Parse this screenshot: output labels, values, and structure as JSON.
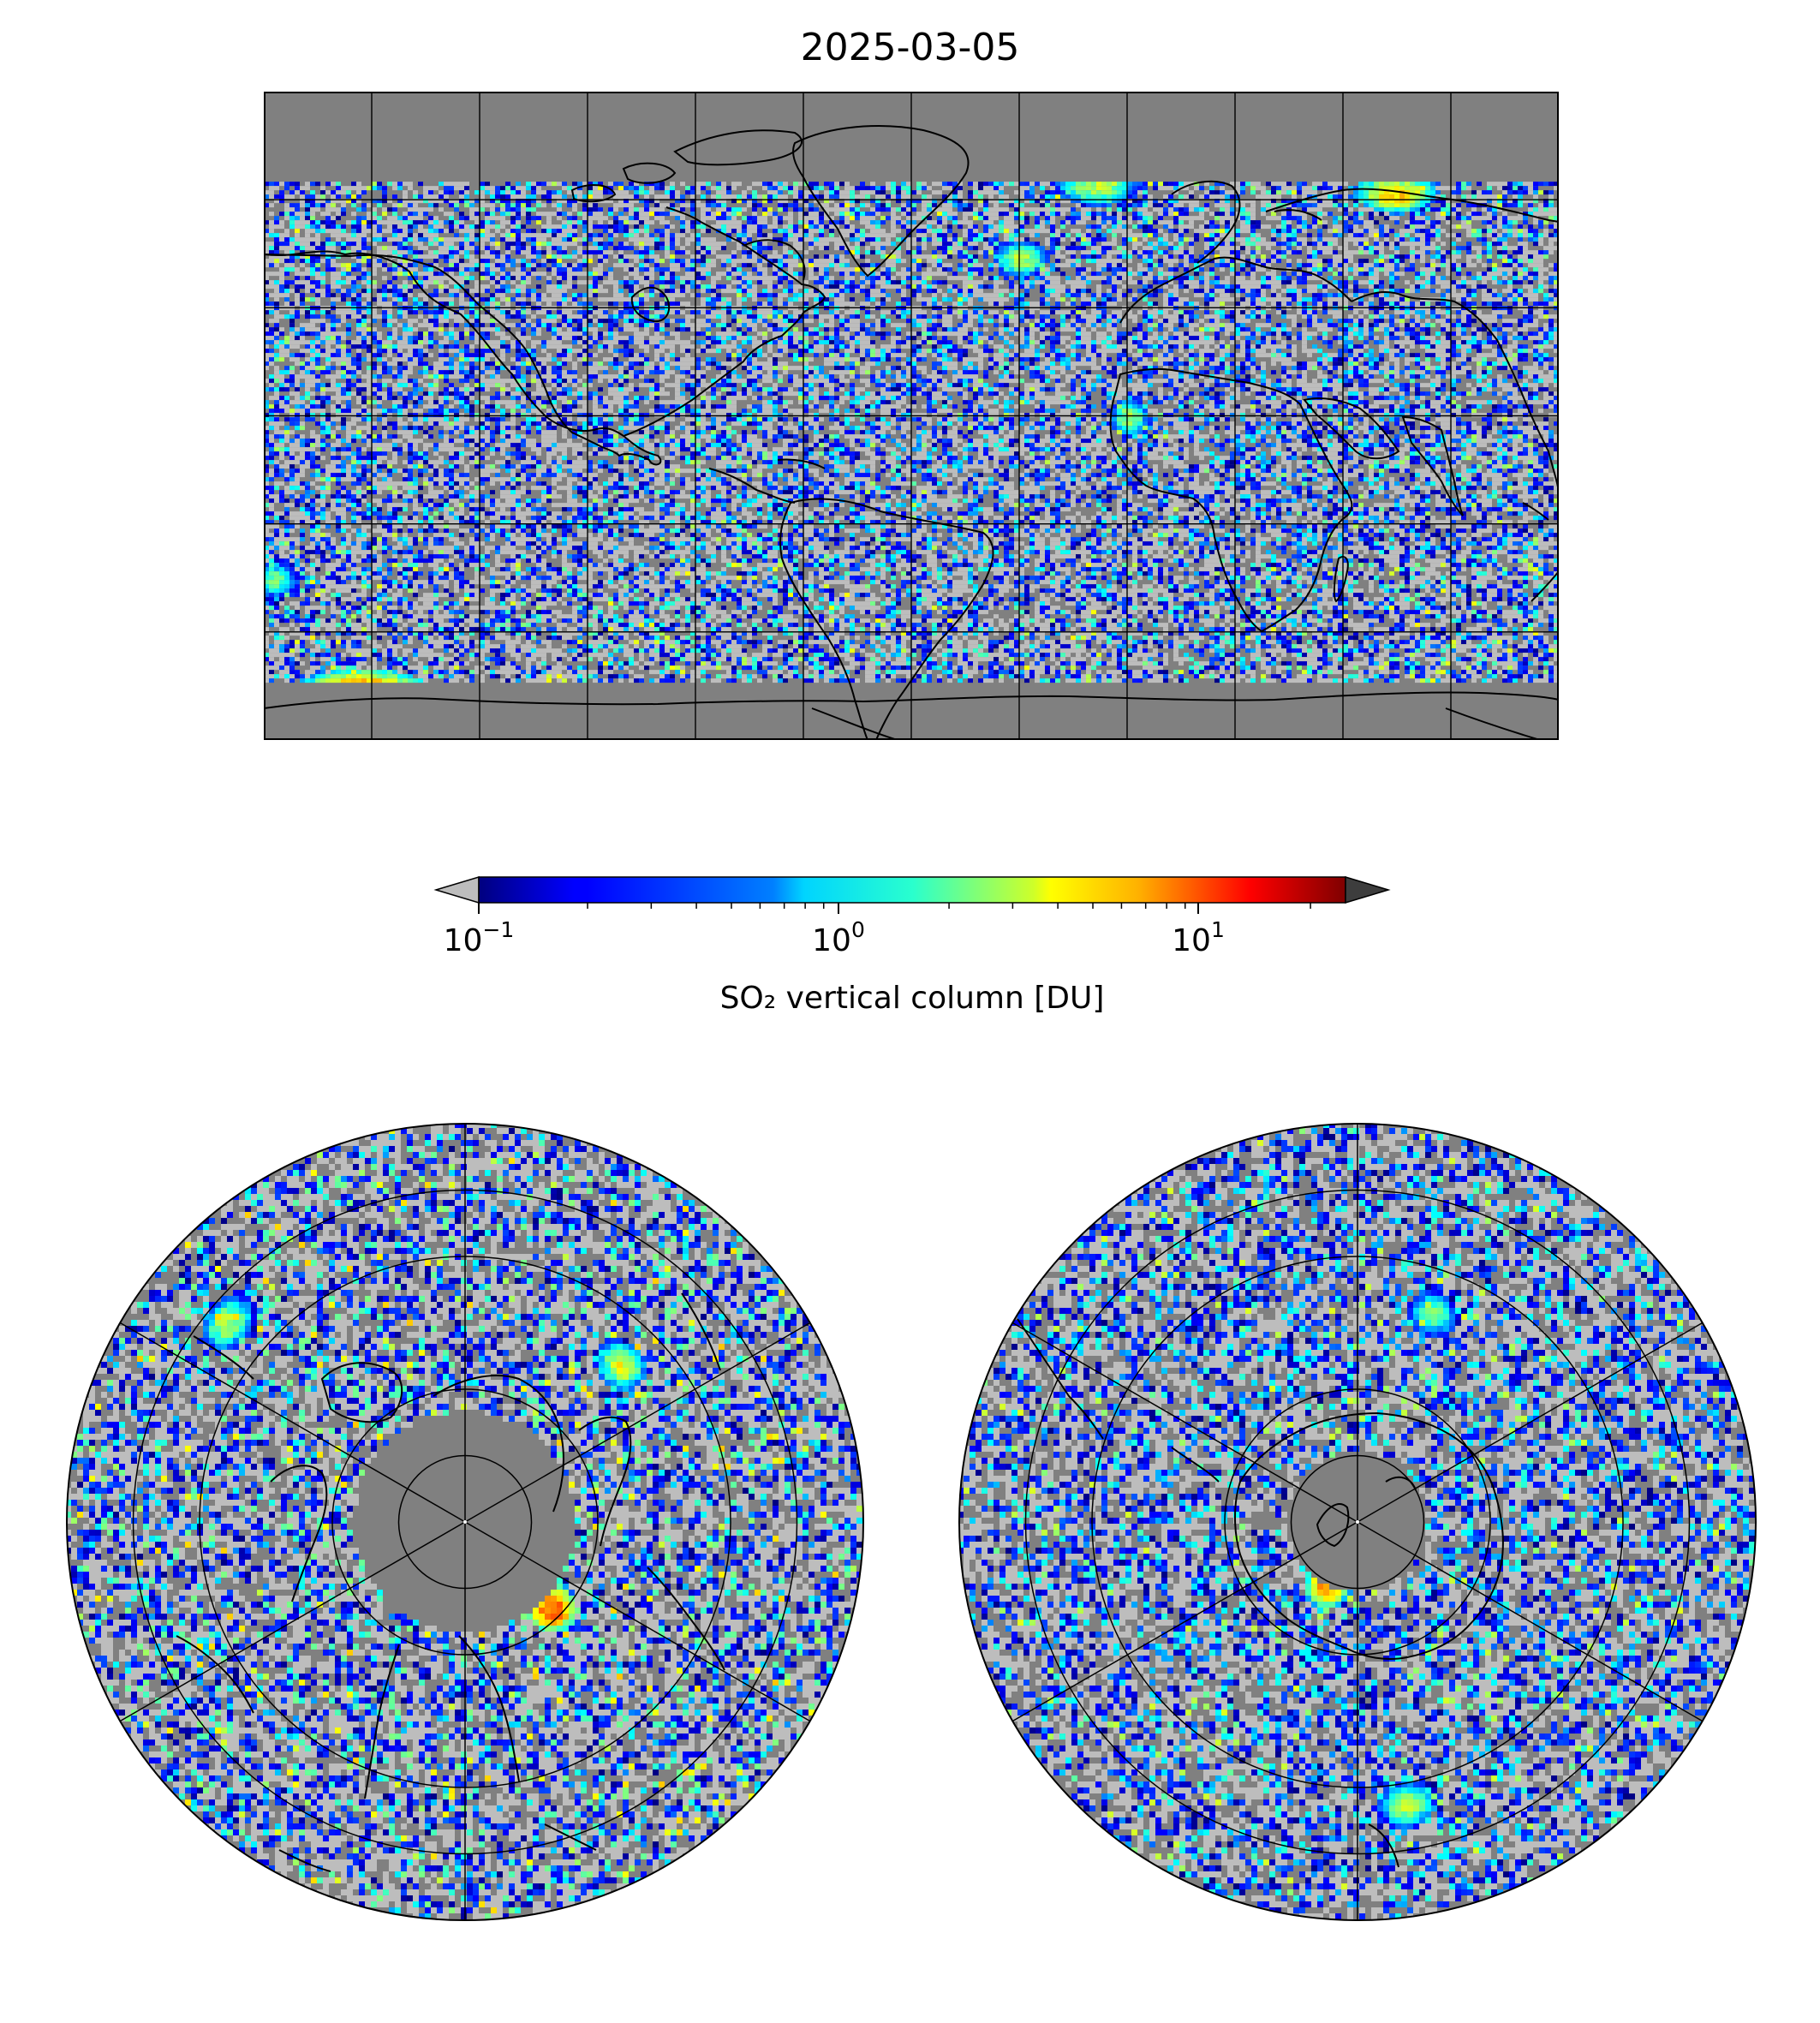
{
  "figure": {
    "title": "2025-03-05"
  },
  "colorbar": {
    "label": "SO₂ vertical column [DU]",
    "scale": "log",
    "range": [
      0.1,
      25
    ],
    "extend": "both",
    "colormap": "jet",
    "under_color": "#bdbdbd",
    "over_color": "#3d3d3d",
    "ticks": [
      {
        "value": 0.1,
        "base": "10",
        "exp": "−1"
      },
      {
        "value": 1,
        "base": "10",
        "exp": "0"
      },
      {
        "value": 10,
        "base": "10",
        "exp": "1"
      }
    ]
  },
  "maps": {
    "background_color": "#808080",
    "below_range_color": "#bdbdbd",
    "coastline_color": "#000000",
    "gridline_color": "#000000"
  },
  "chart_data": [
    {
      "type": "heatmap",
      "name_hidden": "global",
      "projection": "plate-carree",
      "lon_range": [
        -180,
        180
      ],
      "lat_range": [
        -90,
        90
      ],
      "gridlines_lon": [
        -150,
        -120,
        -90,
        -60,
        -30,
        0,
        30,
        60,
        90,
        120,
        150
      ],
      "gridlines_lat": [
        -60,
        -30,
        0,
        30,
        60
      ],
      "grid": true,
      "valid_lat_range": [
        -74,
        65
      ],
      "hotspots": [
        {
          "lon": -153,
          "lat": -75,
          "value": 8
        },
        {
          "lon": 30,
          "lat": 44,
          "value": 3
        },
        {
          "lon": 134,
          "lat": 62,
          "value": 6
        },
        {
          "lon": 51,
          "lat": 64,
          "value": 3
        },
        {
          "lon": 60,
          "lat": 0,
          "value": 3
        },
        {
          "lon": -178,
          "lat": -45,
          "value": 2
        }
      ]
    },
    {
      "type": "heatmap",
      "name_hidden": "north-polar",
      "projection": "north-polar-stereographic",
      "lat_range": [
        0,
        90
      ],
      "grid_circles_lat": [
        15,
        30,
        60,
        75
      ],
      "grid_spokes_lon": [
        0,
        60,
        120,
        180,
        240,
        300
      ],
      "valid_lat_range": [
        0,
        65
      ],
      "hotspots": [
        {
          "lon": 135,
          "lat": 62,
          "value": 12
        },
        {
          "lon": 45,
          "lat": 40,
          "value": 4
        },
        {
          "lon": -50,
          "lat": 20,
          "value": 3
        }
      ]
    },
    {
      "type": "heatmap",
      "name_hidden": "south-polar",
      "projection": "south-polar-stereographic",
      "lat_range": [
        -90,
        0
      ],
      "grid_circles_lat": [
        -15,
        -30,
        -60,
        -75
      ],
      "grid_spokes_lon": [
        0,
        60,
        120,
        180,
        240,
        300
      ],
      "valid_lat_range": [
        -74,
        0
      ],
      "hotspots": [
        {
          "lon": -155,
          "lat": -74,
          "value": 8
        },
        {
          "lon": 170,
          "lat": -25,
          "value": 3
        },
        {
          "lon": 20,
          "lat": -40,
          "value": 2
        }
      ]
    }
  ]
}
